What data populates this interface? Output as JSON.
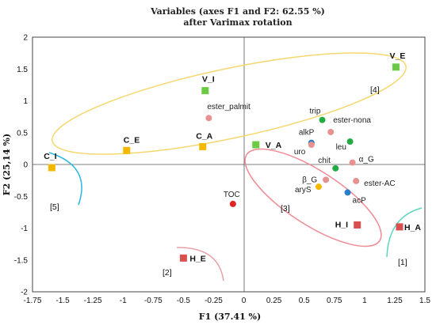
{
  "chart_data": {
    "type": "scatter",
    "title": "Variables (axes F1 and F2: 62.55 %)",
    "subtitle": "after Varimax rotation",
    "xlabel": "F1 (37.41 %)",
    "ylabel": "F2 (25,14 %)",
    "xlim": [
      -1.75,
      1.5
    ],
    "ylim": [
      -2,
      2
    ],
    "xticks": [
      "-1.75",
      "-1.5",
      "-1.25",
      "-1",
      "-0.75",
      "-0.5",
      "-0.25",
      "0",
      "0.25",
      "0.5",
      "0.75",
      "1",
      "1.25",
      "1.5"
    ],
    "yticks": [
      "2",
      "1.5",
      "1",
      "0.5",
      "0",
      "-0.5",
      "-1",
      "-1.5",
      "-2"
    ],
    "origin_lines": true,
    "points": [
      {
        "label": "V_E",
        "x": 1.26,
        "y": 1.53,
        "color": "#6ccb45",
        "shape": "square",
        "bold": true
      },
      {
        "label": "V_I",
        "x": -0.32,
        "y": 1.16,
        "color": "#6ccb45",
        "shape": "square",
        "bold": true
      },
      {
        "label": "V_A",
        "x": 0.1,
        "y": 0.31,
        "color": "#6ccb45",
        "shape": "square",
        "bold": true
      },
      {
        "label": "C_E",
        "x": -0.97,
        "y": 0.22,
        "color": "#f5b800",
        "shape": "square",
        "bold": true
      },
      {
        "label": "C_A",
        "x": -0.34,
        "y": 0.28,
        "color": "#f5b800",
        "shape": "square",
        "bold": true
      },
      {
        "label": "C_I",
        "x": -1.59,
        "y": -0.05,
        "color": "#f5b800",
        "shape": "square",
        "bold": true
      },
      {
        "label": "H_E",
        "x": -0.5,
        "y": -1.47,
        "color": "#d95050",
        "shape": "square",
        "bold": true
      },
      {
        "label": "H_I",
        "x": 0.94,
        "y": -0.95,
        "color": "#d95050",
        "shape": "square",
        "bold": true
      },
      {
        "label": "H_A",
        "x": 1.29,
        "y": -0.98,
        "color": "#d95050",
        "shape": "square",
        "bold": true
      },
      {
        "label": "ester_palmit",
        "x": -0.29,
        "y": 0.73,
        "color": "#e89191",
        "shape": "circle"
      },
      {
        "label": "trip",
        "x": 0.65,
        "y": 0.7,
        "color": "#22aa44",
        "shape": "circle"
      },
      {
        "label": "ester-nona",
        "x": 0.72,
        "y": 0.51,
        "color": "#e89191",
        "shape": "circle"
      },
      {
        "label": "alkP",
        "x": 0.56,
        "y": 0.34,
        "color": "#2a7ec8",
        "shape": "circle"
      },
      {
        "label": "leu",
        "x": 0.88,
        "y": 0.36,
        "color": "#22aa44",
        "shape": "circle"
      },
      {
        "label": "uro",
        "x": 0.56,
        "y": 0.31,
        "color": "#e89191",
        "shape": "circle"
      },
      {
        "label": "α_G",
        "x": 0.9,
        "y": 0.03,
        "color": "#e89191",
        "shape": "circle"
      },
      {
        "label": "chit",
        "x": 0.76,
        "y": -0.06,
        "color": "#22aa44",
        "shape": "circle"
      },
      {
        "label": "β_G",
        "x": 0.68,
        "y": -0.24,
        "color": "#e89191",
        "shape": "circle"
      },
      {
        "label": "ester-AC",
        "x": 0.93,
        "y": -0.26,
        "color": "#e89191",
        "shape": "circle"
      },
      {
        "label": "aryS",
        "x": 0.62,
        "y": -0.35,
        "color": "#f5b800",
        "shape": "circle"
      },
      {
        "label": "acP",
        "x": 0.86,
        "y": -0.44,
        "color": "#2a7ec8",
        "shape": "circle"
      },
      {
        "label": "TOC",
        "x": -0.09,
        "y": -0.62,
        "color": "#e02424",
        "shape": "circle"
      }
    ],
    "groups": [
      "[1]",
      "[2]",
      "[3]",
      "[4]",
      "[5]"
    ],
    "ellipse_colors": {
      "yellow": "#f5d76e",
      "pink": "#f08a94",
      "cyan": "#29b6e0",
      "teal": "#5ad6c0",
      "rose": "#e8a0a8"
    }
  }
}
